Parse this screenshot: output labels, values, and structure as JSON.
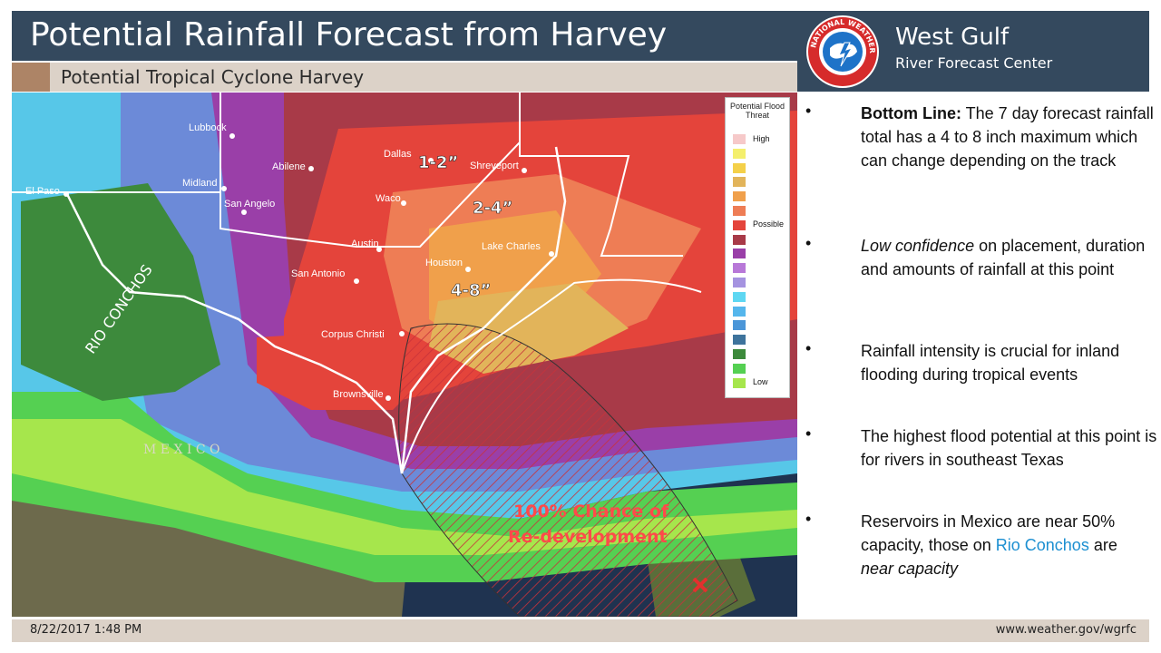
{
  "header": {
    "title": "Potential Rainfall Forecast from Harvey",
    "subtitle": "Potential Tropical Cyclone Harvey"
  },
  "org": {
    "name": "West Gulf",
    "subname": "River Forecast Center",
    "logo_text": "NATIONAL WEATHER SERVICE"
  },
  "map": {
    "cities": [
      "Lubbock",
      "Abilene",
      "Midland",
      "El Paso",
      "San Angelo",
      "Dallas",
      "Shreveport",
      "Waco",
      "Austin",
      "Lake Charles",
      "Houston",
      "San Antonio",
      "Corpus Christi",
      "Brownsville"
    ],
    "rainfall_labels": [
      "1-2”",
      "2-4”",
      "4-8”"
    ],
    "region_labels": {
      "rio_conchos": "RIO CONCHOS",
      "mexico": "M E X I C O"
    },
    "redevelopment_line1": "100% Chance of",
    "redevelopment_line2": "Re-development",
    "colors": {
      "max_threat": "#e3413a",
      "track_hatch": "#c8323a",
      "low_threat": "#a6e64c"
    }
  },
  "legend": {
    "title": "Potential Flood Threat",
    "label_high": "High",
    "label_possible": "Possible",
    "label_low": "Low",
    "colors": [
      "#f6c9c9",
      "#f4ef6d",
      "#f4d049",
      "#e2b45a",
      "#f0a04b",
      "#ee7d55",
      "#e4443b",
      "#a83a48",
      "#9a3fa8",
      "#b878d8",
      "#a593e0",
      "#5ed7f2",
      "#55b6ec",
      "#4b96d8",
      "#3e739c",
      "#3d8a3c",
      "#55d052",
      "#a6e64c"
    ]
  },
  "bullets": [
    {
      "strong": "Bottom Line:",
      "text": " The 7 day forecast rainfall total has a 4 to 8 inch maximum which can change depending on the track"
    },
    {
      "em": "Low confidence",
      "text": " on placement, duration and amounts of rainfall at this point"
    },
    {
      "text": "Rainfall intensity is crucial for inland flooding during tropical events"
    },
    {
      "text": "The highest flood potential at this point is for rivers in southeast Texas"
    },
    {
      "pre": "Reservoirs in Mexico are near 50% capacity, those on ",
      "hl": "Rio Conchos",
      "post": " are",
      "em": "near capacity"
    }
  ],
  "footer": {
    "date": "8/22/2017 1:48 PM",
    "url": "www.weather.gov/wgrfc"
  }
}
